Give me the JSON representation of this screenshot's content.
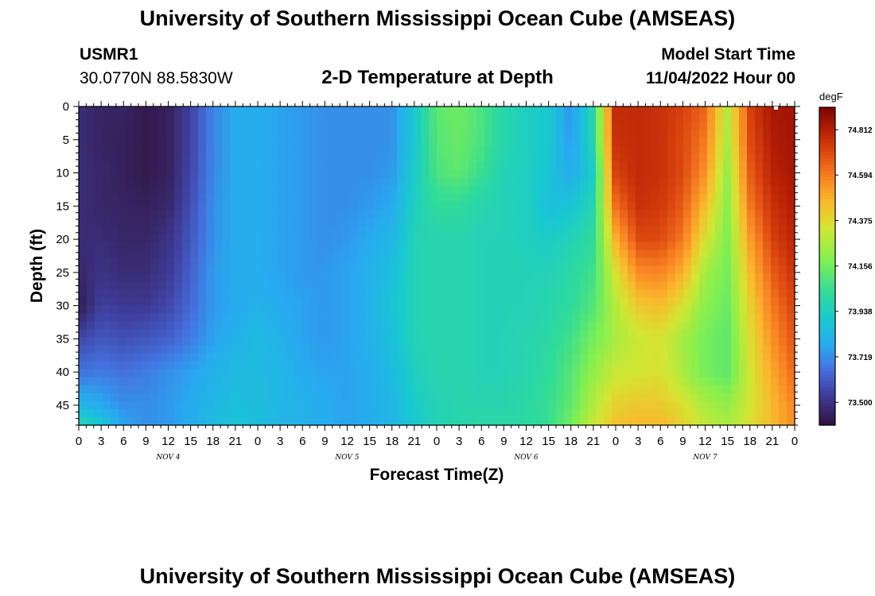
{
  "page": {
    "title": "University of Southern Mississippi Ocean Cube (AMSEAS)",
    "station": "USMR1",
    "coords": "30.0770N  88.5830W",
    "model_start_label": "Model Start Time",
    "model_start_value": "11/04/2022 Hour 00",
    "footer_title": "University of Southern Mississippi Ocean Cube (AMSEAS)"
  },
  "chart_data": {
    "type": "heatmap",
    "title": "2-D Temperature at Depth",
    "xlabel": "Forecast Time(Z)",
    "ylabel": "Depth (ft)",
    "ylim": [
      0,
      48
    ],
    "y_reversed": true,
    "yticks": [
      0,
      5,
      10,
      15,
      20,
      25,
      30,
      35,
      40,
      45
    ],
    "xlim_hours": [
      0,
      96
    ],
    "xtick_labels": [
      "0",
      "3",
      "6",
      "9",
      "12",
      "15",
      "18",
      "21",
      "0",
      "3",
      "6",
      "9",
      "12",
      "15",
      "18",
      "21",
      "0",
      "3",
      "6",
      "9",
      "12",
      "15",
      "18",
      "21",
      "0",
      "3",
      "6",
      "9",
      "12",
      "15",
      "18",
      "21",
      "0"
    ],
    "date_labels": [
      "NOV 4",
      "NOV 5",
      "NOV 6",
      "NOV 7"
    ],
    "colorbar": {
      "unit": "degF",
      "ticks": [
        "74.812",
        "74.594",
        "74.375",
        "74.156",
        "73.938",
        "73.719",
        "73.500"
      ],
      "range": [
        73.39,
        74.92
      ]
    },
    "times_hours": [
      0,
      3,
      6,
      9,
      12,
      15,
      18,
      21,
      24,
      27,
      30,
      33,
      36,
      39,
      42,
      45,
      48,
      51,
      54,
      57,
      60,
      63,
      66,
      69,
      72,
      75,
      78,
      81,
      84,
      87,
      90,
      93,
      96
    ],
    "depths_ft": [
      0,
      5,
      10,
      15,
      20,
      25,
      30,
      35,
      40,
      45,
      48
    ],
    "temperature_degF": [
      [
        73.48,
        73.45,
        73.45,
        73.42,
        73.44,
        73.55,
        73.7,
        73.78,
        73.78,
        73.76,
        73.74,
        73.72,
        73.72,
        73.72,
        73.72,
        73.9,
        74.12,
        74.15,
        74.08,
        73.98,
        73.94,
        73.9,
        73.72,
        73.98,
        74.78,
        74.78,
        74.76,
        74.72,
        74.64,
        74.28,
        74.72,
        74.84,
        74.85
      ],
      [
        73.48,
        73.45,
        73.44,
        73.42,
        73.44,
        73.55,
        73.7,
        73.78,
        73.78,
        73.76,
        73.74,
        73.72,
        73.72,
        73.72,
        73.72,
        73.9,
        74.1,
        74.14,
        74.08,
        73.98,
        73.94,
        73.9,
        73.74,
        73.98,
        74.76,
        74.78,
        74.76,
        74.7,
        74.6,
        74.26,
        74.7,
        74.82,
        74.85
      ],
      [
        73.48,
        73.46,
        73.44,
        73.42,
        73.44,
        73.56,
        73.7,
        73.78,
        73.78,
        73.76,
        73.74,
        73.72,
        73.72,
        73.72,
        73.74,
        73.92,
        74.08,
        74.12,
        74.04,
        73.96,
        73.94,
        73.88,
        73.78,
        73.92,
        74.72,
        74.78,
        74.76,
        74.7,
        74.55,
        74.22,
        74.66,
        74.8,
        74.84
      ],
      [
        73.48,
        73.46,
        73.45,
        73.44,
        73.46,
        73.58,
        73.72,
        73.78,
        73.78,
        73.76,
        73.74,
        73.72,
        73.72,
        73.74,
        73.78,
        73.94,
        74.02,
        74.02,
        73.98,
        73.96,
        73.94,
        73.86,
        73.88,
        73.98,
        74.62,
        74.76,
        74.74,
        74.66,
        74.45,
        74.2,
        74.6,
        74.76,
        74.82
      ],
      [
        73.48,
        73.48,
        73.46,
        73.46,
        73.5,
        73.6,
        73.72,
        73.78,
        73.78,
        73.76,
        73.74,
        73.72,
        73.74,
        73.78,
        73.82,
        73.96,
        73.98,
        73.98,
        73.96,
        73.96,
        73.94,
        73.92,
        73.96,
        74.02,
        74.48,
        74.7,
        74.7,
        74.6,
        74.35,
        74.18,
        74.52,
        74.72,
        74.8
      ],
      [
        73.46,
        73.5,
        73.48,
        73.48,
        73.52,
        73.62,
        73.74,
        73.78,
        73.78,
        73.76,
        73.74,
        73.74,
        73.76,
        73.8,
        73.86,
        73.96,
        73.98,
        73.98,
        73.96,
        73.96,
        73.96,
        73.96,
        74.0,
        74.06,
        74.35,
        74.56,
        74.58,
        74.48,
        74.25,
        74.16,
        74.45,
        74.66,
        74.76
      ],
      [
        73.42,
        73.54,
        73.52,
        73.52,
        73.56,
        73.64,
        73.74,
        73.78,
        73.8,
        73.78,
        73.76,
        73.74,
        73.76,
        73.8,
        73.88,
        73.96,
        73.98,
        73.98,
        73.96,
        73.96,
        73.96,
        73.98,
        74.02,
        74.1,
        74.28,
        74.42,
        74.45,
        74.35,
        74.2,
        74.14,
        74.4,
        74.6,
        74.72
      ],
      [
        73.56,
        73.6,
        73.58,
        73.6,
        73.62,
        73.68,
        73.76,
        73.8,
        73.84,
        73.8,
        73.76,
        73.74,
        73.76,
        73.8,
        73.86,
        73.96,
        73.98,
        73.98,
        73.96,
        73.96,
        73.98,
        74.0,
        74.06,
        74.16,
        74.26,
        74.32,
        74.35,
        74.25,
        74.16,
        74.12,
        74.36,
        74.55,
        74.68
      ],
      [
        73.66,
        73.68,
        73.66,
        73.68,
        73.72,
        73.76,
        73.8,
        73.84,
        73.84,
        73.82,
        73.78,
        73.76,
        73.76,
        73.78,
        73.84,
        73.94,
        73.98,
        73.98,
        73.96,
        73.96,
        73.98,
        74.02,
        74.1,
        74.22,
        74.32,
        74.34,
        74.36,
        74.26,
        74.16,
        74.12,
        74.34,
        74.5,
        74.64
      ],
      [
        73.82,
        73.78,
        73.72,
        73.72,
        73.74,
        73.78,
        73.82,
        73.86,
        73.84,
        73.82,
        73.8,
        73.78,
        73.76,
        73.78,
        73.82,
        73.92,
        73.96,
        73.98,
        73.98,
        73.98,
        74.0,
        74.04,
        74.12,
        74.28,
        74.4,
        74.42,
        74.42,
        74.36,
        74.26,
        74.22,
        74.34,
        74.46,
        74.58
      ],
      [
        74.0,
        73.9,
        73.76,
        73.72,
        73.74,
        73.78,
        73.84,
        73.88,
        73.86,
        73.82,
        73.8,
        73.78,
        73.76,
        73.78,
        73.82,
        73.9,
        73.96,
        73.98,
        74.0,
        74.0,
        74.0,
        74.04,
        74.16,
        74.32,
        74.44,
        74.46,
        74.46,
        74.4,
        74.3,
        74.26,
        74.36,
        74.46,
        74.56
      ]
    ]
  }
}
